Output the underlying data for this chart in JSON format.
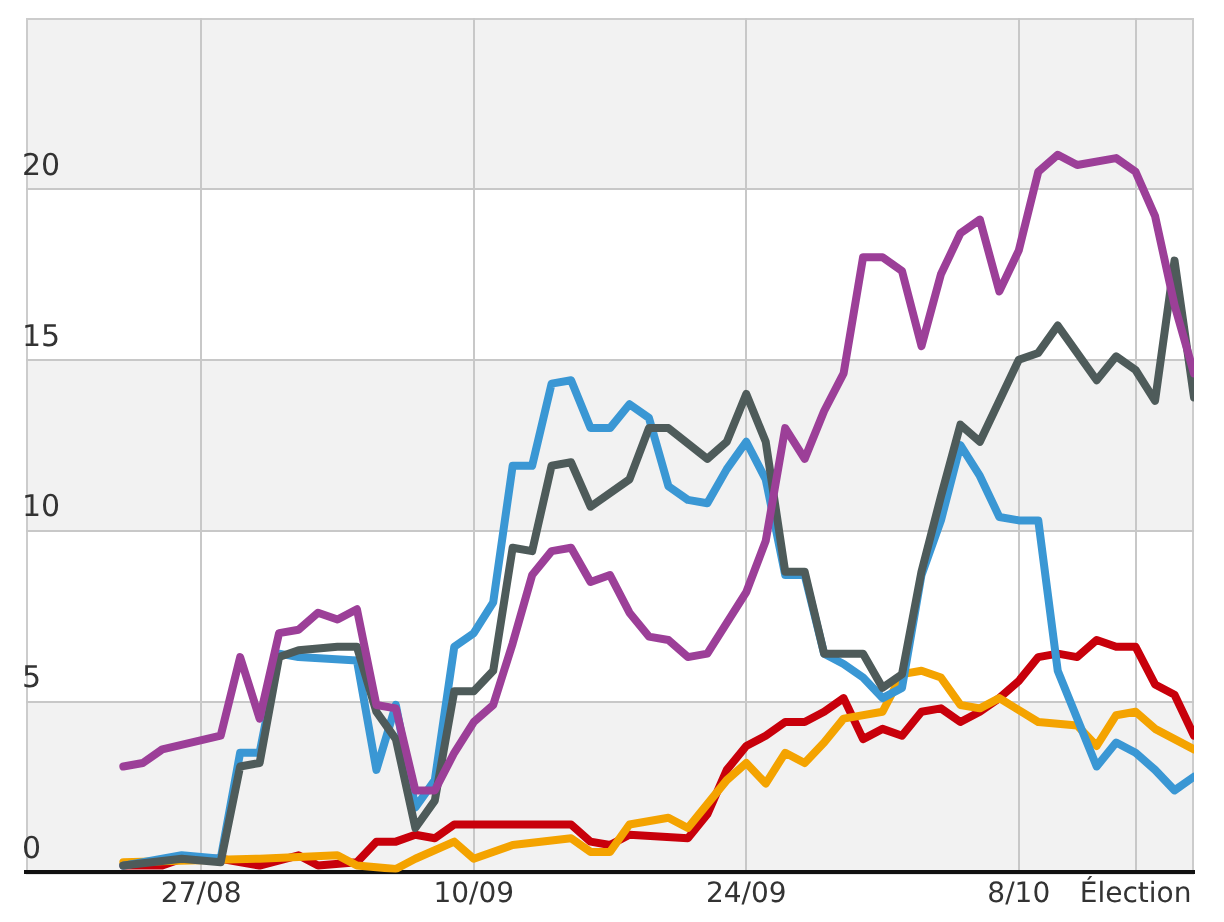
{
  "chart_data": {
    "type": "line",
    "xlim": [
      "--08-18",
      "--10-17"
    ],
    "ylim": [
      0,
      25
    ],
    "yticks": [
      0,
      5,
      10,
      15,
      20
    ],
    "xticks": [
      {
        "value": "--08-27",
        "label": "27/08"
      },
      {
        "value": "--09-10",
        "label": "10/09"
      },
      {
        "value": "--09-24",
        "label": "24/09"
      },
      {
        "value": "--10-08",
        "label": "8/10"
      },
      {
        "value": "--10-14",
        "label": "Élection"
      }
    ],
    "grid": true,
    "marker": "none",
    "line_style": "solid",
    "series": [
      {
        "color": "#9c3f98",
        "x": [
          "--08-23",
          "--08-24",
          "--08-25",
          "--08-28",
          "--08-29",
          "--08-30",
          "--08-31",
          "--09-01",
          "--09-02",
          "--09-03",
          "--09-04",
          "--09-05",
          "--09-06",
          "--09-07",
          "--09-08",
          "--09-09",
          "--09-10",
          "--09-11",
          "--09-12",
          "--09-13",
          "--09-14",
          "--09-15",
          "--09-16",
          "--09-17",
          "--09-18",
          "--09-19",
          "--09-20",
          "--09-21",
          "--09-22",
          "--09-23",
          "--09-24",
          "--09-25",
          "--09-26",
          "--09-27",
          "--09-28",
          "--09-29",
          "--09-30",
          "--10-01",
          "--10-02",
          "--10-03",
          "--10-04",
          "--10-05",
          "--10-06",
          "--10-07",
          "--10-08",
          "--10-09",
          "--10-10",
          "--10-11",
          "--10-13",
          "--10-14",
          "--10-15",
          "--10-16",
          "--10-17"
        ],
        "values": [
          3.1,
          3.2,
          3.6,
          4.0,
          6.3,
          4.5,
          7.0,
          7.1,
          7.6,
          7.4,
          7.7,
          4.9,
          4.8,
          2.4,
          2.4,
          3.5,
          4.4,
          4.9,
          6.7,
          8.7,
          9.4,
          9.5,
          8.5,
          8.7,
          7.6,
          6.9,
          6.8,
          6.3,
          6.4,
          7.3,
          8.2,
          9.7,
          13.0,
          12.1,
          13.5,
          14.6,
          18.0,
          18.0,
          17.6,
          15.4,
          17.5,
          18.7,
          19.1,
          17.0,
          18.2,
          20.5,
          21.0,
          20.7,
          20.9,
          20.5,
          19.2,
          16.6,
          14.6
        ]
      },
      {
        "color": "#4e5b5a",
        "x": [
          "--08-23",
          "--08-26",
          "--08-28",
          "--08-29",
          "--08-30",
          "--08-31",
          "--09-01",
          "--09-03",
          "--09-04",
          "--09-05",
          "--09-06",
          "--09-07",
          "--09-08",
          "--09-09",
          "--09-10",
          "--09-11",
          "--09-12",
          "--09-13",
          "--09-14",
          "--09-15",
          "--09-16",
          "--09-18",
          "--09-19",
          "--09-20",
          "--09-22",
          "--09-23",
          "--09-24",
          "--09-25",
          "--09-26",
          "--09-27",
          "--09-28",
          "--09-30",
          "--10-01",
          "--10-02",
          "--10-03",
          "--10-04",
          "--10-05",
          "--10-06",
          "--10-07",
          "--10-08",
          "--10-09",
          "--10-10",
          "--10-12",
          "--10-13",
          "--10-14",
          "--10-15",
          "--10-16",
          "--10-17"
        ],
        "values": [
          0.2,
          0.4,
          0.3,
          3.1,
          3.2,
          6.3,
          6.5,
          6.6,
          6.6,
          4.7,
          3.9,
          1.3,
          2.1,
          5.3,
          5.3,
          5.9,
          9.5,
          9.4,
          11.9,
          12.0,
          10.7,
          11.5,
          13.0,
          13.0,
          12.1,
          12.6,
          14.0,
          12.6,
          8.8,
          8.8,
          6.4,
          6.4,
          5.4,
          5.8,
          8.8,
          11.0,
          13.1,
          12.6,
          13.8,
          15.0,
          15.2,
          16.0,
          14.4,
          15.1,
          14.7,
          13.8,
          17.9,
          13.9
        ]
      },
      {
        "color": "#3a97d4",
        "x": [
          "--08-23",
          "--08-26",
          "--08-28",
          "--08-29",
          "--08-30",
          "--08-31",
          "--09-01",
          "--09-04",
          "--09-05",
          "--09-06",
          "--09-07",
          "--09-08",
          "--09-09",
          "--09-10",
          "--09-11",
          "--09-12",
          "--09-13",
          "--09-14",
          "--09-15",
          "--09-16",
          "--09-17",
          "--09-18",
          "--09-19",
          "--09-20",
          "--09-21",
          "--09-22",
          "--09-23",
          "--09-24",
          "--09-25",
          "--09-26",
          "--09-27",
          "--09-28",
          "--09-29",
          "--09-30",
          "--10-01",
          "--10-02",
          "--10-03",
          "--10-04",
          "--10-05",
          "--10-06",
          "--10-07",
          "--10-08",
          "--10-09",
          "--10-10",
          "--10-12",
          "--10-13",
          "--10-14",
          "--10-15",
          "--10-16",
          "--10-17"
        ],
        "values": [
          0.2,
          0.5,
          0.4,
          3.5,
          3.5,
          6.4,
          6.3,
          6.2,
          3.0,
          4.9,
          1.9,
          2.7,
          6.6,
          7.0,
          7.9,
          11.9,
          11.9,
          14.3,
          14.4,
          13.0,
          13.0,
          13.7,
          13.3,
          11.3,
          10.9,
          10.8,
          11.8,
          12.6,
          11.5,
          8.7,
          8.7,
          6.4,
          6.1,
          5.7,
          5.1,
          5.4,
          8.7,
          10.3,
          12.5,
          11.6,
          10.4,
          10.3,
          10.3,
          5.9,
          3.1,
          3.8,
          3.5,
          3.0,
          2.4,
          2.8
        ]
      },
      {
        "color": "#f4a300",
        "x": [
          "--08-23",
          "--08-30",
          "--09-03",
          "--09-04",
          "--09-06",
          "--09-07",
          "--09-09",
          "--09-10",
          "--09-12",
          "--09-15",
          "--09-16",
          "--09-17",
          "--09-18",
          "--09-20",
          "--09-21",
          "--09-23",
          "--09-24",
          "--09-25",
          "--09-26",
          "--09-27",
          "--09-28",
          "--09-29",
          "--10-01",
          "--10-02",
          "--10-03",
          "--10-04",
          "--10-05",
          "--10-06",
          "--10-07",
          "--10-09",
          "--10-11",
          "--10-12",
          "--10-13",
          "--10-14",
          "--10-15",
          "--10-17"
        ],
        "values": [
          0.3,
          0.4,
          0.5,
          0.2,
          0.1,
          0.4,
          0.9,
          0.4,
          0.8,
          1.0,
          0.6,
          0.6,
          1.4,
          1.6,
          1.3,
          2.7,
          3.2,
          2.6,
          3.5,
          3.2,
          3.8,
          4.5,
          4.7,
          5.8,
          5.9,
          5.7,
          4.9,
          4.8,
          5.1,
          4.4,
          4.3,
          3.7,
          4.6,
          4.7,
          4.2,
          3.6
        ]
      },
      {
        "color": "#c8000b",
        "x": [
          "--08-23",
          "--08-25",
          "--08-26",
          "--08-28",
          "--08-30",
          "--09-01",
          "--09-02",
          "--09-04",
          "--09-05",
          "--09-06",
          "--09-07",
          "--09-08",
          "--09-09",
          "--09-15",
          "--09-16",
          "--09-17",
          "--09-18",
          "--09-21",
          "--09-22",
          "--09-23",
          "--09-24",
          "--09-25",
          "--09-26",
          "--09-27",
          "--09-28",
          "--09-29",
          "--09-30",
          "--10-01",
          "--10-02",
          "--10-03",
          "--10-04",
          "--10-05",
          "--10-06",
          "--10-07",
          "--10-08",
          "--10-09",
          "--10-10",
          "--10-11",
          "--10-12",
          "--10-13",
          "--10-14",
          "--10-15",
          "--10-16",
          "--10-17"
        ],
        "values": [
          0.2,
          0.2,
          0.4,
          0.4,
          0.2,
          0.5,
          0.2,
          0.3,
          0.9,
          0.9,
          1.1,
          1.0,
          1.4,
          1.4,
          0.9,
          0.8,
          1.1,
          1.0,
          1.7,
          3.0,
          3.7,
          4.0,
          4.4,
          4.4,
          4.7,
          5.1,
          3.9,
          4.2,
          4.0,
          4.7,
          4.8,
          4.4,
          4.7,
          5.1,
          5.6,
          6.3,
          6.4,
          6.3,
          6.8,
          6.6,
          6.6,
          5.5,
          5.2,
          4.0
        ]
      }
    ]
  }
}
